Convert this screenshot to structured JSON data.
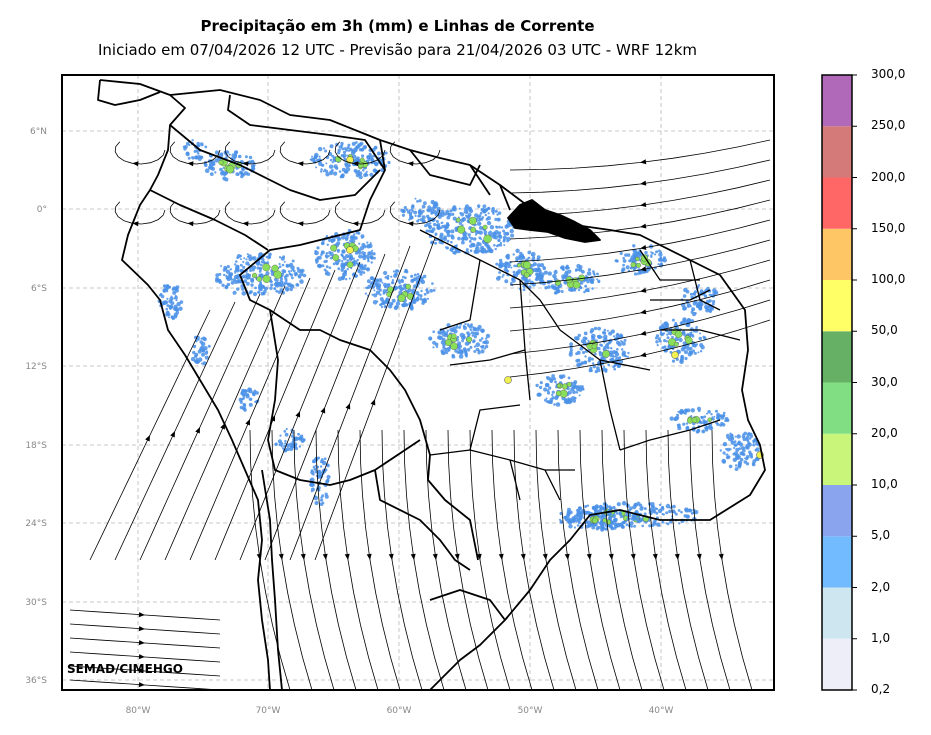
{
  "title": "Precipitação em 3h (mm) e Linhas de Corrente",
  "subtitle": "Iniciado em 07/04/2026 12 UTC - Previsão para 21/04/2026 03 UTC - WRF 12km",
  "watermark": "SEMAD/CIMEHGO",
  "lat_ticks": [
    "6°N",
    "0°",
    "6°S",
    "12°S",
    "18°S",
    "24°S",
    "30°S",
    "36°S"
  ],
  "lon_ticks": [
    "80°W",
    "70°W",
    "60°W",
    "50°W",
    "40°W"
  ],
  "colorbar": {
    "levels": [
      "0,2",
      "1,0",
      "2,0",
      "5,0",
      "10,0",
      "20,0",
      "30,0",
      "50,0",
      "100,0",
      "150,0",
      "200,0",
      "250,0",
      "300,0"
    ],
    "colors": [
      "#eeeef8",
      "#cde6f0",
      "#72bbff",
      "#8aa5ee",
      "#c8f57a",
      "#82de82",
      "#66b066",
      "#ffff66",
      "#ffc666",
      "#ff6666",
      "#d47a78",
      "#b068b8"
    ]
  },
  "colors": {
    "grid": "#b8b8b8",
    "tick_label": "#888888",
    "rain_blue": "#4a90e8",
    "rain_green": "#8adf5a",
    "rain_yellow": "#f0f050",
    "streamline": "#000000"
  }
}
